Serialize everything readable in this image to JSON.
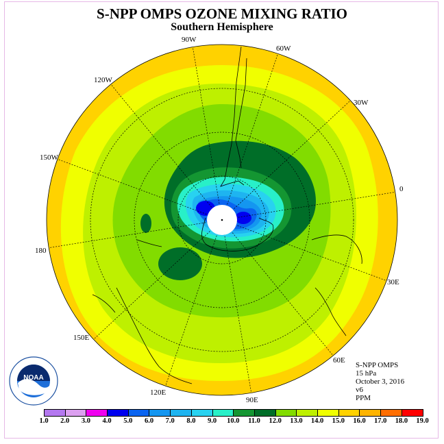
{
  "title": "S-NPP OMPS OZONE MIXING RATIO",
  "subtitle": "Southern Hemisphere",
  "map": {
    "projection": "south polar stereographic",
    "longitude_labels": [
      {
        "text": "90W",
        "name": "lon-90w"
      },
      {
        "text": "60W",
        "name": "lon-60w"
      },
      {
        "text": "30W",
        "name": "lon-30w"
      },
      {
        "text": "0",
        "name": "lon-0"
      },
      {
        "text": "30E",
        "name": "lon-30e"
      },
      {
        "text": "60E",
        "name": "lon-60e"
      },
      {
        "text": "90E",
        "name": "lon-90e"
      },
      {
        "text": "120E",
        "name": "lon-120e"
      },
      {
        "text": "150E",
        "name": "lon-150e"
      },
      {
        "text": "180",
        "name": "lon-180"
      },
      {
        "text": "150W",
        "name": "lon-150w"
      },
      {
        "text": "120W",
        "name": "lon-120w"
      }
    ]
  },
  "info": {
    "instrument": "S-NPP OMPS",
    "level": "15 hPa",
    "date": "October 3, 2016",
    "version": "v6",
    "units": "PPM"
  },
  "logo": {
    "text": "NOAA"
  },
  "legend": {
    "ticks": [
      "1.0",
      "2.0",
      "3.0",
      "4.0",
      "5.0",
      "6.0",
      "7.0",
      "8.0",
      "9.0",
      "10.0",
      "11.0",
      "12.0",
      "13.0",
      "14.0",
      "15.0",
      "16.0",
      "17.0",
      "18.0",
      "19.0"
    ],
    "colors": [
      "#b478f0",
      "#dca0f0",
      "#f000f0",
      "#0000f0",
      "#0a64f0",
      "#1496f0",
      "#1eb4f0",
      "#28d2f0",
      "#28f0c8",
      "#149632",
      "#006e28",
      "#82dc00",
      "#bef000",
      "#f0ff00",
      "#ffd200",
      "#ffb400",
      "#ff6e00",
      "#ff0000",
      "#8c6432"
    ]
  }
}
